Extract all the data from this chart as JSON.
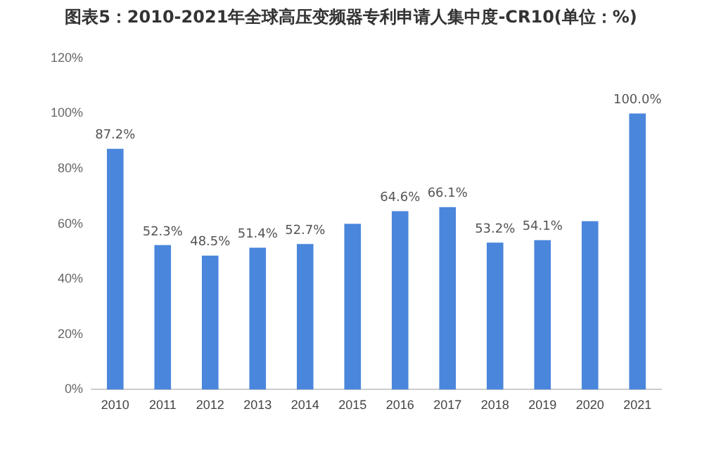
{
  "chart_data": {
    "type": "bar",
    "title": "图表5：2010-2021年全球高压变频器专利申请人集中度-CR10(单位：%)",
    "categories": [
      "2010",
      "2011",
      "2012",
      "2013",
      "2014",
      "2015",
      "2016",
      "2017",
      "2018",
      "2019",
      "2020",
      "2021"
    ],
    "values": [
      87.2,
      52.3,
      48.5,
      51.4,
      52.7,
      60,
      64.6,
      66.1,
      53.2,
      54.1,
      61,
      100.0
    ],
    "value_labels": [
      "87.2%",
      "52.3%",
      "48.5%",
      "51.4%",
      "52.7%",
      null,
      "64.6%",
      "66.1%",
      "53.2%",
      "54.1%",
      null,
      "100.0%"
    ],
    "color": "#4a86dc",
    "ylim": [
      0,
      120
    ],
    "yticks": [
      {
        "value": 0,
        "label": "0%"
      },
      {
        "value": 20,
        "label": "20%"
      },
      {
        "value": 40,
        "label": "40%"
      },
      {
        "value": 60,
        "label": "60%"
      },
      {
        "value": 80,
        "label": "80%"
      },
      {
        "value": 100,
        "label": "100%"
      },
      {
        "value": 120,
        "label": "120%"
      }
    ],
    "grid": false
  }
}
